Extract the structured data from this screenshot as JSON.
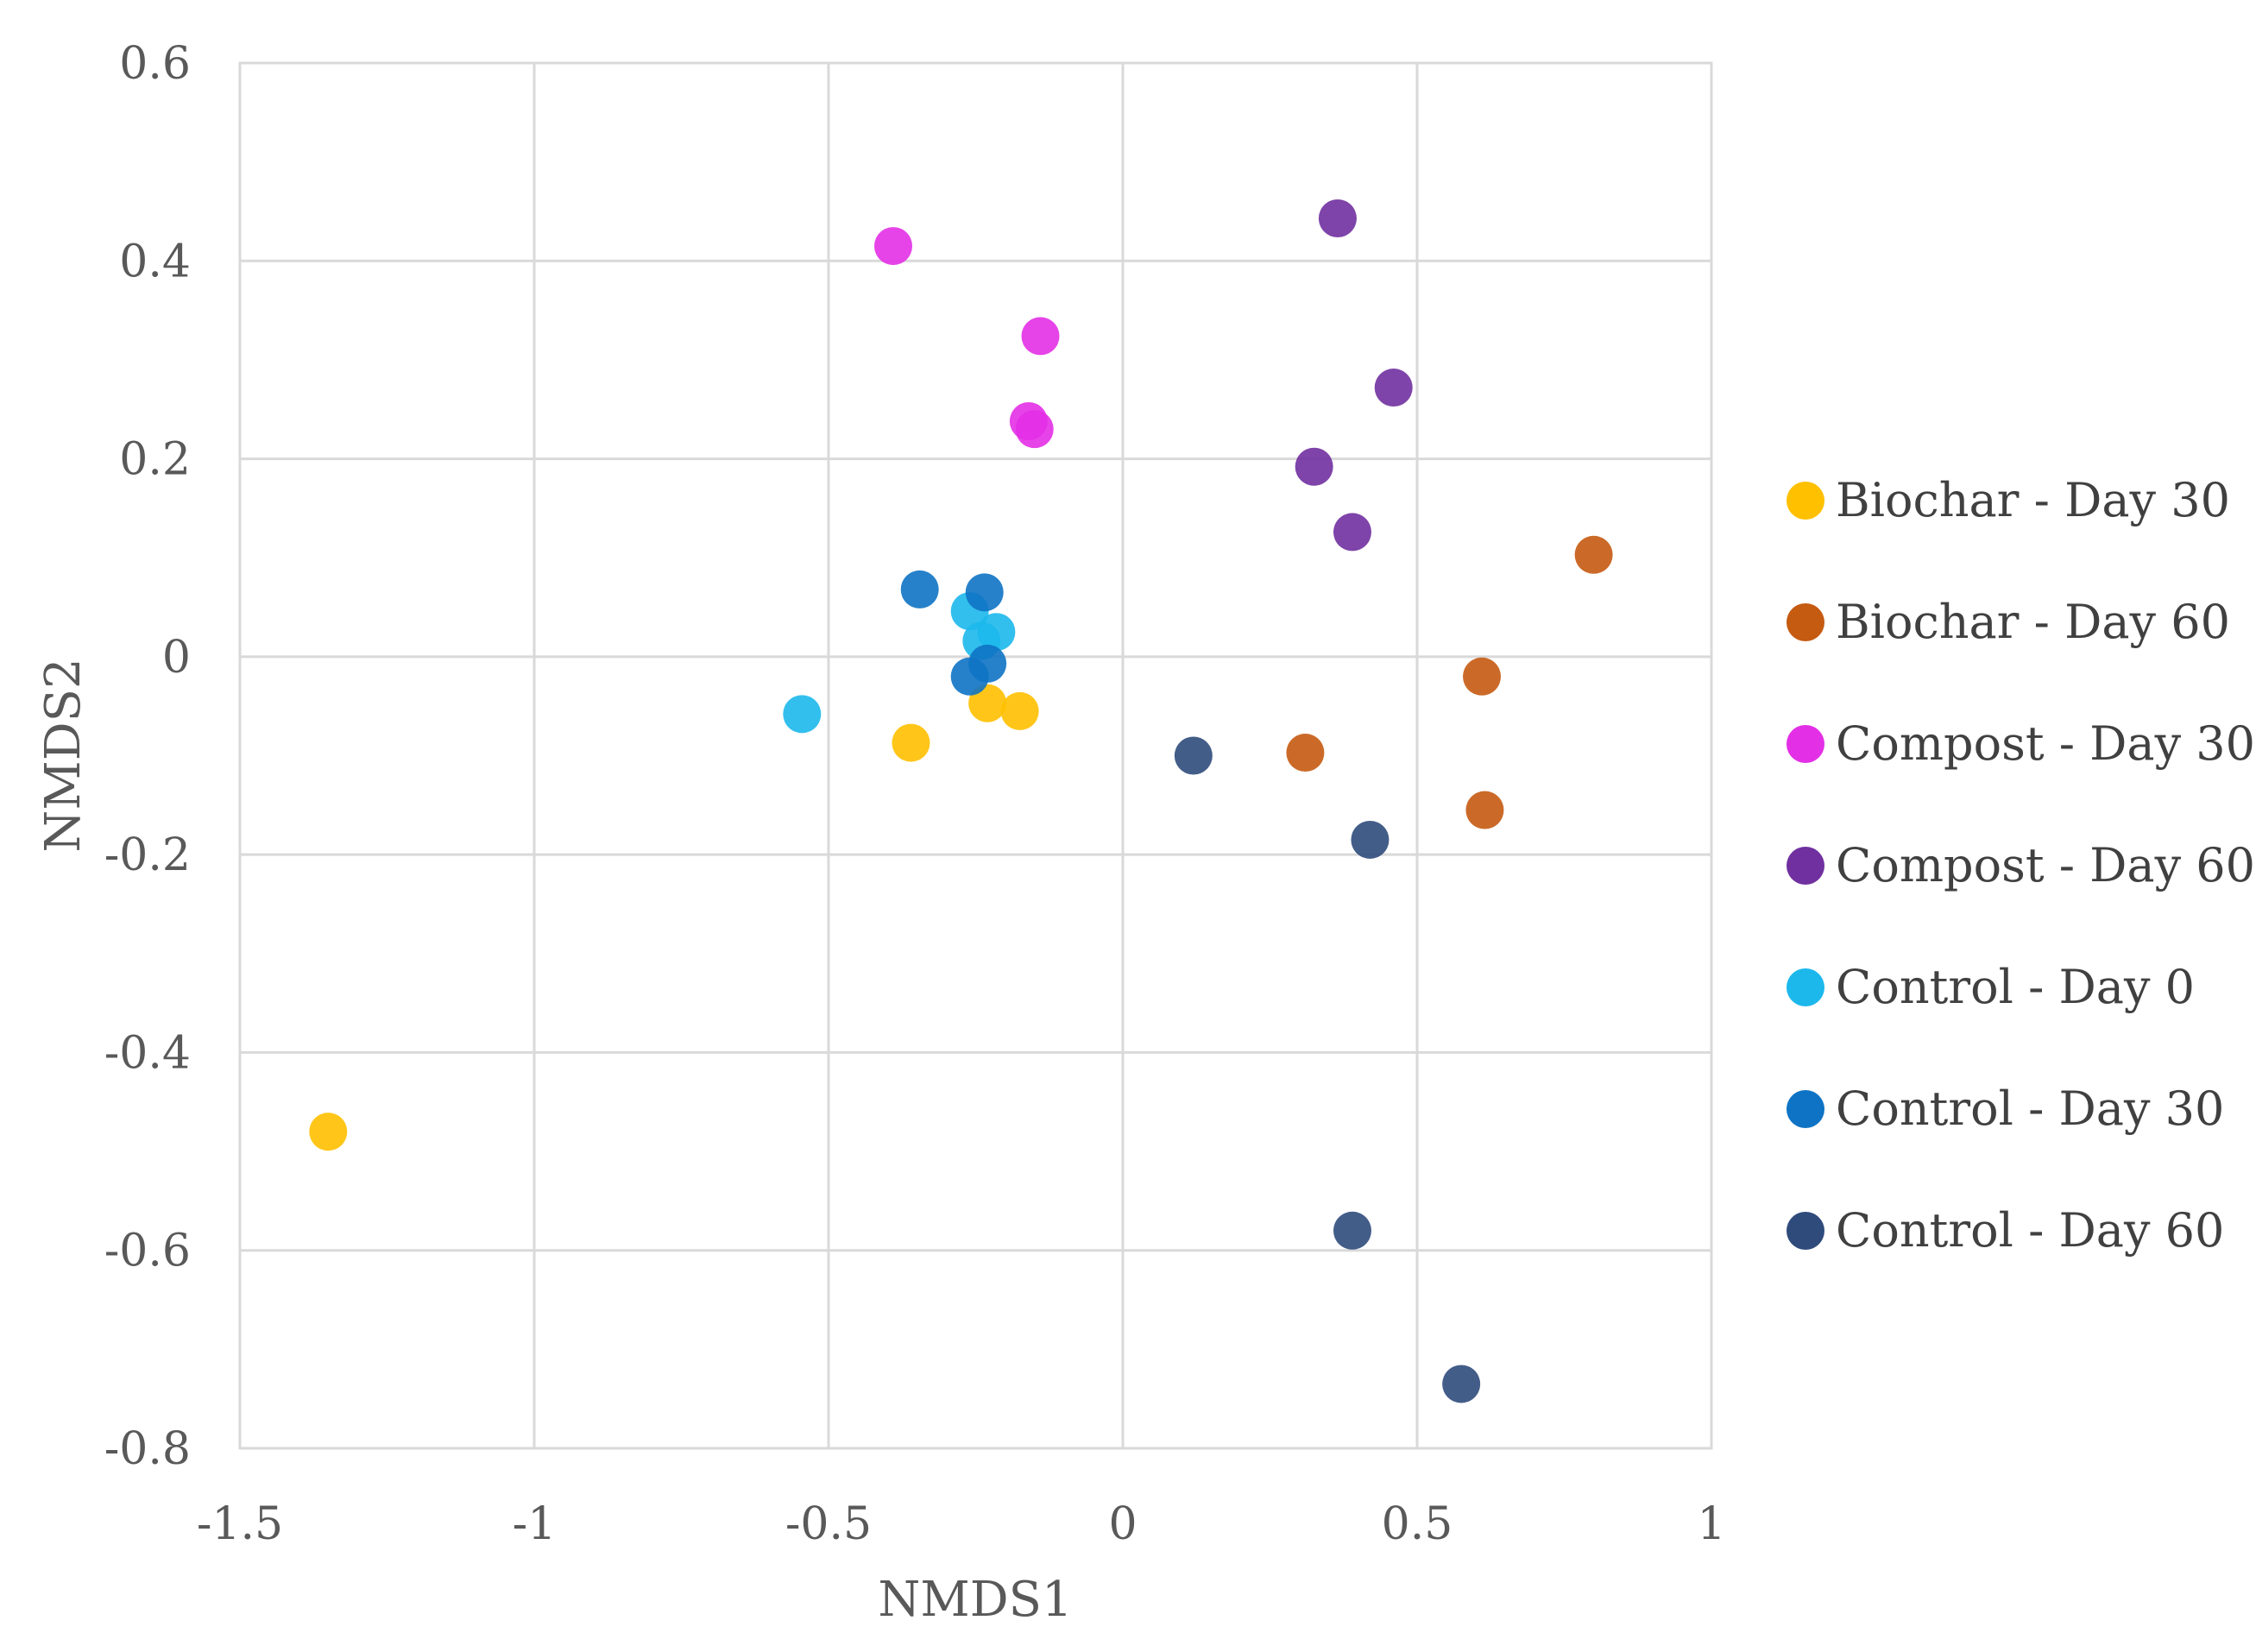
{
  "chart_data": {
    "type": "scatter",
    "title": "",
    "xlabel": "NMDS1",
    "ylabel": "NMDS2",
    "xlim": [
      -1.5,
      1
    ],
    "ylim": [
      -0.8,
      0.6
    ],
    "xticks": [
      -1.5,
      -1,
      -0.5,
      0,
      0.5,
      1
    ],
    "xtick_labels": [
      "-1.5",
      "-1",
      "-0.5",
      "0",
      "0.5",
      "1"
    ],
    "yticks": [
      -0.8,
      -0.6,
      -0.4,
      -0.2,
      0,
      0.2,
      0.4,
      0.6
    ],
    "ytick_labels": [
      "-0.8",
      "-0.6",
      "-0.4",
      "-0.2",
      "0",
      "0.2",
      "0.4",
      "0.6"
    ],
    "grid": true,
    "legend_position": "right",
    "series": [
      {
        "name": "Biochar - Day 30",
        "color": "#FFC000",
        "points": [
          [
            -1.35,
            -0.48
          ],
          [
            -0.36,
            -0.087
          ],
          [
            -0.23,
            -0.047
          ],
          [
            -0.175,
            -0.055
          ]
        ]
      },
      {
        "name": "Biochar - Day 60",
        "color": "#C55A11",
        "points": [
          [
            0.8,
            0.103
          ],
          [
            0.61,
            -0.02
          ],
          [
            0.31,
            -0.097
          ],
          [
            0.615,
            -0.155
          ]
        ]
      },
      {
        "name": "Compost - Day 30",
        "color": "#E32FE6",
        "points": [
          [
            -0.39,
            0.415
          ],
          [
            -0.14,
            0.324
          ],
          [
            -0.16,
            0.238
          ],
          [
            -0.15,
            0.23
          ]
        ]
      },
      {
        "name": "Compost - Day 60",
        "color": "#7030A0",
        "points": [
          [
            0.365,
            0.443
          ],
          [
            0.46,
            0.272
          ],
          [
            0.325,
            0.192
          ],
          [
            0.39,
            0.126
          ]
        ]
      },
      {
        "name": "Control - Day 0",
        "color": "#1CB8EC",
        "points": [
          [
            -0.545,
            -0.058
          ],
          [
            -0.26,
            0.046
          ],
          [
            -0.215,
            0.025
          ],
          [
            -0.24,
            0.016
          ]
        ]
      },
      {
        "name": "Control - Day 30",
        "color": "#0E73C4",
        "points": [
          [
            -0.345,
            0.068
          ],
          [
            -0.235,
            0.065
          ],
          [
            -0.23,
            -0.007
          ],
          [
            -0.26,
            -0.02
          ]
        ]
      },
      {
        "name": "Control - Day 60",
        "color": "#2F4B7C",
        "points": [
          [
            0.12,
            -0.1
          ],
          [
            0.42,
            -0.185
          ],
          [
            0.39,
            -0.58
          ],
          [
            0.575,
            -0.735
          ]
        ]
      }
    ]
  }
}
